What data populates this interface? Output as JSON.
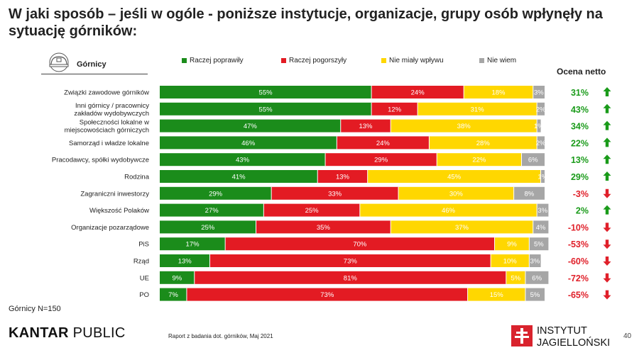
{
  "title": "W jaki sposób – jeśli w ogóle - poniższe instytucje, organizacje, grupy osób wpłynęły na sytuację górników:",
  "group_label": "Górnicy",
  "netto_title": "Ocena netto",
  "note": "Górnicy N=150",
  "brand": {
    "bold": "KANTAR",
    "light": " PUBLIC"
  },
  "report": "Raport z badania dot. górników, Maj 2021",
  "institute": {
    "line1": "INSTYTUT",
    "line2": "JAGIELLOŃSKI"
  },
  "page_number": "40",
  "icons": {
    "group": "miner-helmet-icon",
    "up": "arrow-up-icon",
    "down": "arrow-down-icon",
    "institute": "cross-logo-icon"
  },
  "colors": {
    "brand_red": "#d9232d",
    "up": "#1a9b1a",
    "down": "#e0202a"
  },
  "chart_data": {
    "type": "bar",
    "orientation": "horizontal",
    "stacked": true,
    "unit": "%",
    "xlim": [
      0,
      100
    ],
    "categories": [
      "Związki zawodowe górników",
      "Inni górnicy / pracownicy zakładów wydobywczych",
      "Społeczności lokalne w miejscowościach górniczych",
      "Samorząd i władze lokalne",
      "Pracodawcy, spółki wydobywcze",
      "Rodzina",
      "Zagraniczni inwestorzy",
      "Większość Polaków",
      "Organizacje pozarządowe",
      "PiS",
      "Rząd",
      "UE",
      "PO"
    ],
    "series": [
      {
        "name": "Raczej poprawiły",
        "color": "#1b8c1b",
        "text_color": "#ffffff",
        "values": [
          55,
          55,
          47,
          46,
          43,
          41,
          29,
          27,
          25,
          17,
          13,
          9,
          7
        ],
        "labels": [
          "55%",
          "55%",
          "47%",
          "46%",
          "43%",
          "41%",
          "29%",
          "27%",
          "25%",
          "17%",
          "13%",
          "9%",
          "7%"
        ]
      },
      {
        "name": "Raczej pogorszyły",
        "color": "#e31b23",
        "text_color": "#ffffff",
        "values": [
          24,
          12,
          13,
          24,
          29,
          13,
          33,
          25,
          35,
          70,
          73,
          81,
          73
        ],
        "labels": [
          "24%",
          "12%",
          "13%",
          "24%",
          "29%",
          "13%",
          "33%",
          "25%",
          "35%",
          "70%",
          "73%",
          "81%",
          "73%"
        ]
      },
      {
        "name": "Nie miały wpływu",
        "color": "#ffd700",
        "text_color": "#ffffff",
        "values": [
          18,
          31,
          38,
          28,
          22,
          45,
          30,
          46,
          37,
          9,
          10,
          5,
          15
        ],
        "labels": [
          "18%",
          "31%",
          "38%",
          "28%",
          "22%",
          "45%",
          "30%",
          "46%",
          "37%",
          "9%",
          "10%",
          "5%",
          "15%"
        ]
      },
      {
        "name": "Nie wiem",
        "color": "#a6a6a6",
        "text_color": "#ffffff",
        "values": [
          3,
          2,
          1,
          2,
          6,
          1,
          8,
          3,
          4,
          5,
          3,
          6,
          5
        ],
        "labels": [
          "3%",
          "2%",
          "1%",
          "2%",
          "6%",
          "1%",
          "8%",
          "3%",
          "4%",
          "5%",
          "3%",
          "6%",
          "5%"
        ]
      }
    ],
    "net_score": {
      "title": "Ocena netto",
      "values": [
        31,
        43,
        34,
        22,
        13,
        29,
        -3,
        2,
        -10,
        -53,
        -60,
        -72,
        -65
      ],
      "labels": [
        "31%",
        "43%",
        "34%",
        "22%",
        "13%",
        "29%",
        "-3%",
        "2%",
        "-10%",
        "-53%",
        "-60%",
        "-72%",
        "-65%"
      ],
      "direction": [
        "up",
        "up",
        "up",
        "up",
        "up",
        "up",
        "down",
        "up",
        "down",
        "down",
        "down",
        "down",
        "down"
      ]
    },
    "legend_position": "top",
    "grid": false
  }
}
